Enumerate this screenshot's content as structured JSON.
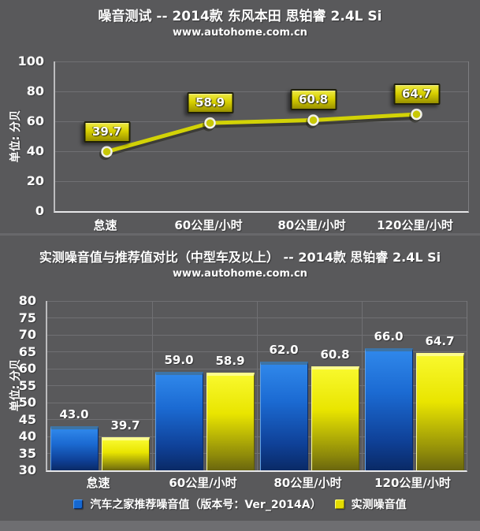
{
  "chart_data": [
    {
      "type": "line",
      "title": "噪音测试 -- 2014款 东风本田 思铂睿 2.4L Si",
      "subtitle": "www.autohome.com.cn",
      "ylabel": "单位: 分贝",
      "categories": [
        "怠速",
        "60公里/小时",
        "80公里/小时",
        "120公里/小时"
      ],
      "values": [
        39.7,
        58.9,
        60.8,
        64.7
      ],
      "ylim": [
        0,
        100
      ],
      "yticks": [
        0,
        20,
        40,
        60,
        80,
        100
      ],
      "grid": "horizontal",
      "legend": "none",
      "line_color": "#d2d206",
      "marker_stroke_color": "#f2f2ea",
      "label_box_color": "#d8d000",
      "background_color": "#59595b",
      "text_color": "#ffffff"
    },
    {
      "type": "bar",
      "title": "实测噪音值与推荐值对比（中型车及以上） -- 2014款 思铂睿 2.4L Si",
      "subtitle": "www.autohome.com.cn",
      "ylabel": "单位: 分贝",
      "categories": [
        "怠速",
        "60公里/小时",
        "80公里/小时",
        "120公里/小时"
      ],
      "series": [
        {
          "name": "汽车之家推荐噪音值（版本号：Ver_2014A）",
          "color": "#1a6fd8",
          "values": [
            43.0,
            59.0,
            62.0,
            66.0
          ]
        },
        {
          "name": "实测噪音值",
          "color": "#e8e400",
          "values": [
            39.7,
            58.9,
            60.8,
            64.7
          ]
        }
      ],
      "ylim": [
        30,
        80
      ],
      "yticks": [
        30,
        35,
        40,
        45,
        50,
        55,
        60,
        65,
        70,
        75,
        80
      ],
      "grid": "both",
      "legend_position": "bottom",
      "background_color": "#59595b",
      "text_color": "#ffffff"
    }
  ]
}
